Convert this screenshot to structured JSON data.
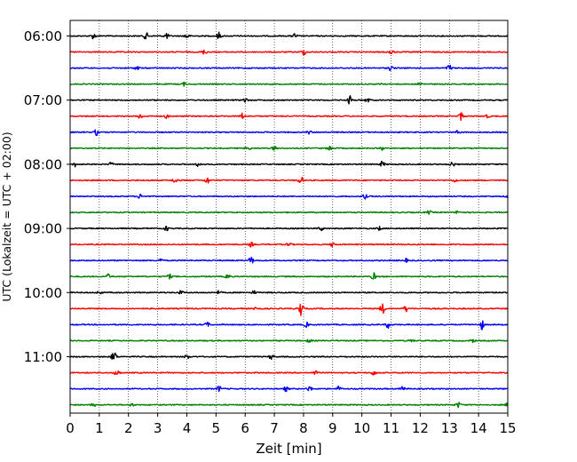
{
  "chart_data": {
    "type": "line",
    "xlabel": "Zeit  [min]",
    "ylabel": "UTC (Lokalzeit = UTC + 02:00)",
    "xlim": [
      0,
      15
    ],
    "x_ticks": [
      "0",
      "1",
      "2",
      "3",
      "4",
      "5",
      "6",
      "7",
      "8",
      "9",
      "10",
      "11",
      "12",
      "13",
      "14",
      "15"
    ],
    "y_tick_labels": [
      "06:00",
      "07:00",
      "08:00",
      "09:00",
      "10:00",
      "11:00"
    ],
    "trace_interval_minutes": 15,
    "start_time": "06:00",
    "end_time": "11:45",
    "grid": "vertical dotted lines at each minute",
    "colors_cycle": [
      "#000000",
      "#ff0000",
      "#0000ff",
      "#008000"
    ],
    "traces": [
      {
        "time": "06:00",
        "color": "#000000",
        "events": [
          [
            0.8,
            0.5
          ],
          [
            2.6,
            0.6
          ],
          [
            3.3,
            0.5
          ],
          [
            4.0,
            0.5
          ],
          [
            5.1,
            0.6
          ],
          [
            7.7,
            0.4
          ]
        ]
      },
      {
        "time": "06:15",
        "color": "#ff0000",
        "events": [
          [
            4.6,
            0.4
          ],
          [
            8.0,
            0.5
          ],
          [
            11.0,
            0.5
          ]
        ]
      },
      {
        "time": "06:30",
        "color": "#0000ff",
        "events": [
          [
            2.3,
            0.4
          ],
          [
            11.0,
            0.5
          ],
          [
            13.0,
            0.6
          ]
        ]
      },
      {
        "time": "06:45",
        "color": "#008000",
        "events": [
          [
            3.9,
            0.3
          ],
          [
            10.7,
            0.3
          ],
          [
            12.0,
            0.3
          ]
        ]
      },
      {
        "time": "07:00",
        "color": "#000000",
        "events": [
          [
            6.0,
            0.4
          ],
          [
            9.6,
            0.8
          ],
          [
            10.2,
            0.4
          ]
        ]
      },
      {
        "time": "07:15",
        "color": "#ff0000",
        "events": [
          [
            2.4,
            0.5
          ],
          [
            3.3,
            0.3
          ],
          [
            5.9,
            0.5
          ],
          [
            13.4,
            0.7
          ],
          [
            14.3,
            0.3
          ]
        ]
      },
      {
        "time": "07:30",
        "color": "#0000ff",
        "events": [
          [
            0.9,
            0.5
          ],
          [
            8.2,
            0.3
          ],
          [
            13.3,
            0.3
          ]
        ]
      },
      {
        "time": "07:45",
        "color": "#008000",
        "events": [
          [
            6.1,
            0.4
          ],
          [
            7.0,
            0.3
          ],
          [
            8.9,
            0.4
          ],
          [
            10.7,
            0.3
          ]
        ]
      },
      {
        "time": "08:00",
        "color": "#000000",
        "events": [
          [
            0.2,
            0.5
          ],
          [
            1.4,
            0.3
          ],
          [
            4.4,
            0.4
          ],
          [
            10.7,
            0.5
          ],
          [
            13.1,
            0.5
          ]
        ]
      },
      {
        "time": "08:15",
        "color": "#ff0000",
        "events": [
          [
            3.6,
            0.5
          ],
          [
            4.7,
            0.6
          ],
          [
            7.9,
            0.7
          ],
          [
            13.2,
            0.3
          ]
        ]
      },
      {
        "time": "08:30",
        "color": "#0000ff",
        "events": [
          [
            2.4,
            0.4
          ],
          [
            10.1,
            0.4
          ],
          [
            15.0,
            0.3
          ]
        ]
      },
      {
        "time": "08:45",
        "color": "#008000",
        "events": [
          [
            12.3,
            0.3
          ],
          [
            13.3,
            0.3
          ]
        ]
      },
      {
        "time": "09:00",
        "color": "#000000",
        "events": [
          [
            3.3,
            0.4
          ],
          [
            8.6,
            0.4
          ],
          [
            10.6,
            0.3
          ]
        ]
      },
      {
        "time": "09:15",
        "color": "#ff0000",
        "events": [
          [
            6.2,
            0.4
          ],
          [
            7.5,
            0.4
          ],
          [
            9.0,
            0.4
          ]
        ]
      },
      {
        "time": "09:30",
        "color": "#0000ff",
        "events": [
          [
            3.1,
            0.3
          ],
          [
            6.2,
            0.7
          ],
          [
            11.5,
            0.3
          ]
        ]
      },
      {
        "time": "09:45",
        "color": "#008000",
        "events": [
          [
            1.3,
            0.4
          ],
          [
            3.4,
            0.4
          ],
          [
            5.4,
            0.4
          ],
          [
            10.4,
            0.6
          ]
        ]
      },
      {
        "time": "10:00",
        "color": "#000000",
        "events": [
          [
            1.0,
            0.3
          ],
          [
            3.8,
            0.3
          ],
          [
            5.1,
            0.3
          ],
          [
            6.3,
            0.3
          ]
        ]
      },
      {
        "time": "10:15",
        "color": "#ff0000",
        "events": [
          [
            6.4,
            0.5
          ],
          [
            7.9,
            1.6
          ],
          [
            10.7,
            0.9
          ],
          [
            11.5,
            0.5
          ]
        ]
      },
      {
        "time": "10:30",
        "color": "#0000ff",
        "events": [
          [
            4.7,
            0.4
          ],
          [
            8.1,
            0.4
          ],
          [
            10.9,
            0.6
          ],
          [
            14.1,
            0.9
          ]
        ]
      },
      {
        "time": "10:45",
        "color": "#008000",
        "events": [
          [
            8.2,
            0.3
          ],
          [
            11.7,
            0.3
          ],
          [
            13.8,
            0.3
          ]
        ]
      },
      {
        "time": "11:00",
        "color": "#000000",
        "events": [
          [
            1.5,
            1.2
          ],
          [
            4.0,
            0.4
          ],
          [
            6.9,
            0.5
          ]
        ]
      },
      {
        "time": "11:15",
        "color": "#ff0000",
        "events": [
          [
            1.6,
            0.7
          ],
          [
            8.4,
            0.4
          ],
          [
            10.4,
            0.5
          ]
        ]
      },
      {
        "time": "11:30",
        "color": "#0000ff",
        "events": [
          [
            5.1,
            0.5
          ],
          [
            7.4,
            0.4
          ],
          [
            8.2,
            0.5
          ],
          [
            9.2,
            0.4
          ],
          [
            11.4,
            0.4
          ]
        ]
      },
      {
        "time": "11:45",
        "color": "#008000",
        "events": [
          [
            0.8,
            0.3
          ],
          [
            2.1,
            0.3
          ],
          [
            13.3,
            0.5
          ],
          [
            15.0,
            0.3
          ]
        ]
      }
    ]
  }
}
